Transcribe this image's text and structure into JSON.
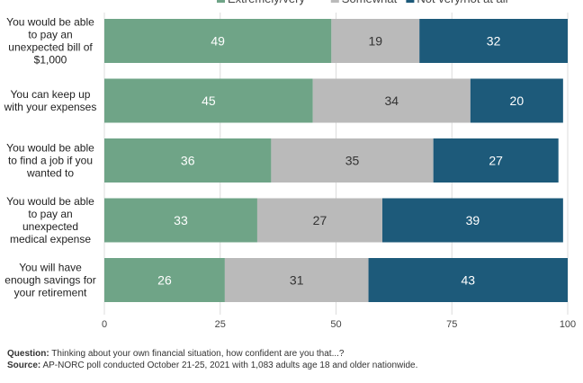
{
  "chart_data": {
    "type": "bar",
    "orientation": "horizontal",
    "stacked": true,
    "categories": [
      "You would be able to pay an unexpected bill of $1,000",
      "You can keep up with your expenses",
      "You would be able to find a job if you wanted to",
      "You would be able to pay an unexpected medical expense",
      "You will have enough savings for your retirement"
    ],
    "category_lines": [
      [
        "You would be able",
        "to pay an",
        "unexpected bill of",
        "$1,000"
      ],
      [
        "You can keep up",
        "with your expenses"
      ],
      [
        "You would be able",
        "to find a job if you",
        "wanted to"
      ],
      [
        "You would be able",
        "to pay an",
        "unexpected",
        "medical expense"
      ],
      [
        "You will have",
        "enough savings for",
        "your retirement"
      ]
    ],
    "series": [
      {
        "name": "Extremely/very",
        "values": [
          49,
          45,
          36,
          33,
          26
        ],
        "color": "#6fa487"
      },
      {
        "name": "Somewhat",
        "values": [
          19,
          34,
          35,
          27,
          31
        ],
        "color": "#bababa"
      },
      {
        "name": "Not very/not at all",
        "values": [
          32,
          20,
          27,
          39,
          43
        ],
        "color": "#1d5a7a"
      }
    ],
    "xlim": [
      0,
      100
    ],
    "xticks": [
      0,
      25,
      50,
      75,
      100
    ],
    "grid": true,
    "legend": "top"
  },
  "notes": {
    "question_label": "Question:",
    "question_text": "Thinking about your own financial situation, how confident are you that...?",
    "source_label": "Source:",
    "source_text": "AP-NORC poll conducted October 21-25, 2021 with 1,083 adults age 18 and older nationwide."
  }
}
